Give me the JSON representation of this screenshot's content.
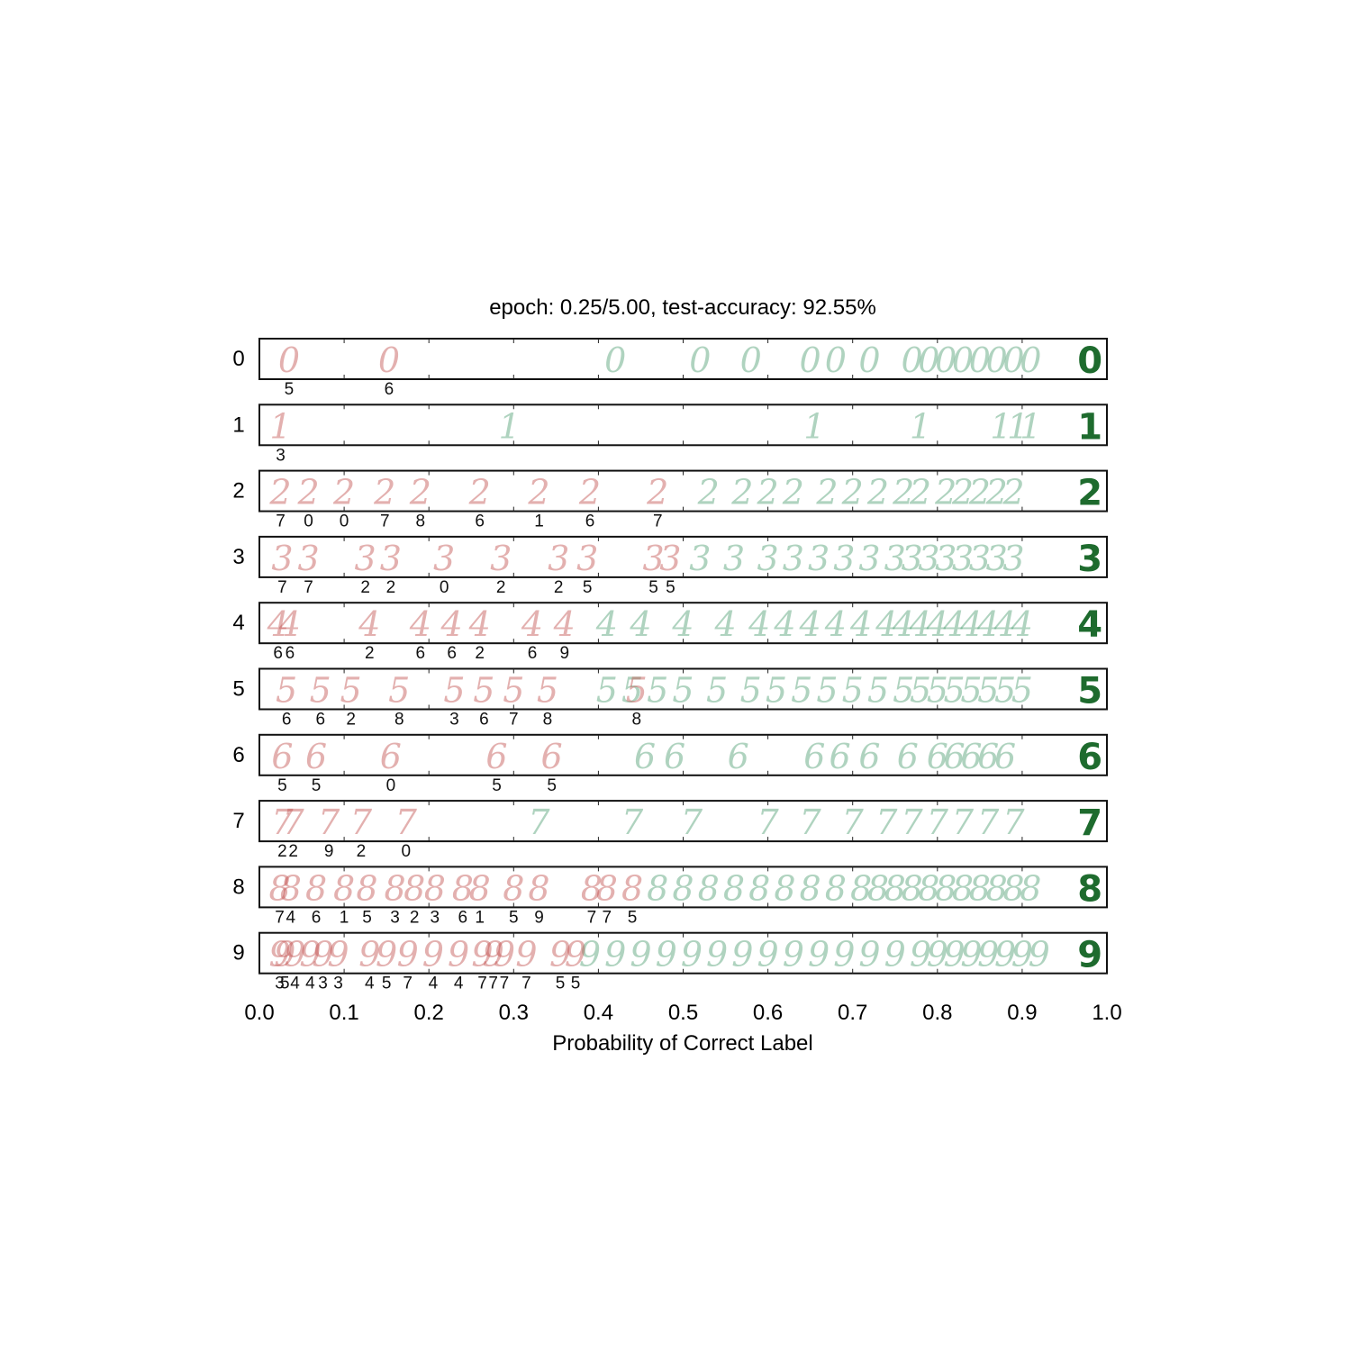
{
  "chart_data": {
    "type": "scatter",
    "title": "epoch: 0.25/5.00, test-accuracy: 92.55%",
    "xlabel": "Probability of Correct Label",
    "xlim": [
      0.0,
      1.0
    ],
    "xticks": [
      "0.0",
      "0.1",
      "0.2",
      "0.3",
      "0.4",
      "0.5",
      "0.6",
      "0.7",
      "0.8",
      "0.9",
      "1.0"
    ],
    "grid": false,
    "colors": {
      "misclassified": "#c0504d",
      "correct": "#2e8b57",
      "exemplar": "#1e6b2e"
    },
    "rows": [
      {
        "label": "0",
        "misclassified": [
          {
            "x": 0.035,
            "pred": "5"
          },
          {
            "x": 0.153,
            "pred": "6"
          }
        ],
        "correct": [
          0.42,
          0.52,
          0.58,
          0.65,
          0.68,
          0.72,
          0.77,
          0.79,
          0.81,
          0.83,
          0.85,
          0.87,
          0.89,
          0.91
        ]
      },
      {
        "label": "1",
        "misclassified": [
          {
            "x": 0.025,
            "pred": "3"
          }
        ],
        "correct": [
          0.295,
          0.655,
          0.78,
          0.875,
          0.895,
          0.91
        ]
      },
      {
        "label": "2",
        "misclassified": [
          {
            "x": 0.025,
            "pred": "7"
          },
          {
            "x": 0.058,
            "pred": "0"
          },
          {
            "x": 0.1,
            "pred": "0"
          },
          {
            "x": 0.148,
            "pred": "7"
          },
          {
            "x": 0.19,
            "pred": "8"
          },
          {
            "x": 0.26,
            "pred": "6"
          },
          {
            "x": 0.33,
            "pred": "1"
          },
          {
            "x": 0.39,
            "pred": "6"
          },
          {
            "x": 0.47,
            "pred": "7"
          }
        ],
        "correct": [
          0.53,
          0.57,
          0.6,
          0.63,
          0.67,
          0.7,
          0.73,
          0.76,
          0.78,
          0.81,
          0.83,
          0.85,
          0.87,
          0.89
        ]
      },
      {
        "label": "3",
        "misclassified": [
          {
            "x": 0.027,
            "pred": "7"
          },
          {
            "x": 0.058,
            "pred": "7"
          },
          {
            "x": 0.125,
            "pred": "2"
          },
          {
            "x": 0.155,
            "pred": "2"
          },
          {
            "x": 0.218,
            "pred": "0"
          },
          {
            "x": 0.285,
            "pred": "2"
          },
          {
            "x": 0.353,
            "pred": "2"
          },
          {
            "x": 0.387,
            "pred": "5"
          },
          {
            "x": 0.465,
            "pred": "5"
          },
          {
            "x": 0.485,
            "pred": "5"
          }
        ],
        "correct": [
          0.52,
          0.56,
          0.6,
          0.63,
          0.66,
          0.69,
          0.72,
          0.75,
          0.77,
          0.79,
          0.81,
          0.83,
          0.85,
          0.87,
          0.89
        ]
      },
      {
        "label": "4",
        "misclassified": [
          {
            "x": 0.022,
            "pred": "6"
          },
          {
            "x": 0.036,
            "pred": "6"
          },
          {
            "x": 0.13,
            "pred": "2"
          },
          {
            "x": 0.19,
            "pred": "6"
          },
          {
            "x": 0.227,
            "pred": "6"
          },
          {
            "x": 0.26,
            "pred": "2"
          },
          {
            "x": 0.322,
            "pred": "6"
          },
          {
            "x": 0.36,
            "pred": "9"
          }
        ],
        "correct": [
          0.41,
          0.45,
          0.5,
          0.55,
          0.59,
          0.62,
          0.65,
          0.68,
          0.71,
          0.74,
          0.76,
          0.78,
          0.8,
          0.82,
          0.84,
          0.86,
          0.88,
          0.9
        ]
      },
      {
        "label": "5",
        "misclassified": [
          {
            "x": 0.032,
            "pred": "6"
          },
          {
            "x": 0.072,
            "pred": "6"
          },
          {
            "x": 0.108,
            "pred": "2"
          },
          {
            "x": 0.165,
            "pred": "8"
          },
          {
            "x": 0.23,
            "pred": "3"
          },
          {
            "x": 0.265,
            "pred": "6"
          },
          {
            "x": 0.3,
            "pred": "7"
          },
          {
            "x": 0.34,
            "pred": "8"
          },
          {
            "x": 0.445,
            "pred": "8"
          }
        ],
        "correct": [
          0.41,
          0.44,
          0.47,
          0.5,
          0.54,
          0.58,
          0.61,
          0.64,
          0.67,
          0.7,
          0.73,
          0.76,
          0.78,
          0.8,
          0.82,
          0.84,
          0.86,
          0.88,
          0.9
        ]
      },
      {
        "label": "6",
        "misclassified": [
          {
            "x": 0.027,
            "pred": "5"
          },
          {
            "x": 0.067,
            "pred": "5"
          },
          {
            "x": 0.155,
            "pred": "0"
          },
          {
            "x": 0.28,
            "pred": "5"
          },
          {
            "x": 0.345,
            "pred": "5"
          }
        ],
        "correct": [
          0.455,
          0.49,
          0.565,
          0.655,
          0.685,
          0.72,
          0.765,
          0.8,
          0.82,
          0.84,
          0.86,
          0.88
        ]
      },
      {
        "label": "7",
        "misclassified": [
          {
            "x": 0.027,
            "pred": "2"
          },
          {
            "x": 0.04,
            "pred": "2"
          },
          {
            "x": 0.082,
            "pred": "9"
          },
          {
            "x": 0.12,
            "pred": "2"
          },
          {
            "x": 0.173,
            "pred": "0"
          }
        ],
        "correct": [
          0.33,
          0.44,
          0.51,
          0.6,
          0.65,
          0.7,
          0.74,
          0.77,
          0.8,
          0.83,
          0.86,
          0.89
        ]
      },
      {
        "label": "8",
        "misclassified": [
          {
            "x": 0.024,
            "pred": "7"
          },
          {
            "x": 0.037,
            "pred": "4"
          },
          {
            "x": 0.067,
            "pred": "6"
          },
          {
            "x": 0.1,
            "pred": "1"
          },
          {
            "x": 0.127,
            "pred": "5"
          },
          {
            "x": 0.16,
            "pred": "3"
          },
          {
            "x": 0.183,
            "pred": "2"
          },
          {
            "x": 0.207,
            "pred": "3"
          },
          {
            "x": 0.24,
            "pred": "6"
          },
          {
            "x": 0.26,
            "pred": "1"
          },
          {
            "x": 0.3,
            "pred": "5"
          },
          {
            "x": 0.33,
            "pred": "9"
          },
          {
            "x": 0.392,
            "pred": "7"
          },
          {
            "x": 0.41,
            "pred": "7"
          },
          {
            "x": 0.44,
            "pred": "5"
          }
        ],
        "correct": [
          0.47,
          0.5,
          0.53,
          0.56,
          0.59,
          0.62,
          0.65,
          0.68,
          0.71,
          0.73,
          0.75,
          0.77,
          0.79,
          0.81,
          0.83,
          0.85,
          0.87,
          0.89,
          0.91
        ]
      },
      {
        "label": "9",
        "misclassified": [
          {
            "x": 0.024,
            "pred": "3"
          },
          {
            "x": 0.03,
            "pred": "5"
          },
          {
            "x": 0.042,
            "pred": "4"
          },
          {
            "x": 0.06,
            "pred": "4"
          },
          {
            "x": 0.075,
            "pred": "3"
          },
          {
            "x": 0.093,
            "pred": "3"
          },
          {
            "x": 0.13,
            "pred": "4"
          },
          {
            "x": 0.15,
            "pred": "5"
          },
          {
            "x": 0.175,
            "pred": "7"
          },
          {
            "x": 0.205,
            "pred": "4"
          },
          {
            "x": 0.235,
            "pred": "4"
          },
          {
            "x": 0.263,
            "pred": "7"
          },
          {
            "x": 0.276,
            "pred": "7"
          },
          {
            "x": 0.289,
            "pred": "7"
          },
          {
            "x": 0.315,
            "pred": "7"
          },
          {
            "x": 0.355,
            "pred": "5"
          },
          {
            "x": 0.373,
            "pred": "5"
          }
        ],
        "correct": [
          0.39,
          0.42,
          0.45,
          0.48,
          0.51,
          0.54,
          0.57,
          0.6,
          0.63,
          0.66,
          0.69,
          0.72,
          0.75,
          0.78,
          0.8,
          0.82,
          0.84,
          0.86,
          0.88,
          0.9,
          0.92
        ]
      }
    ]
  }
}
